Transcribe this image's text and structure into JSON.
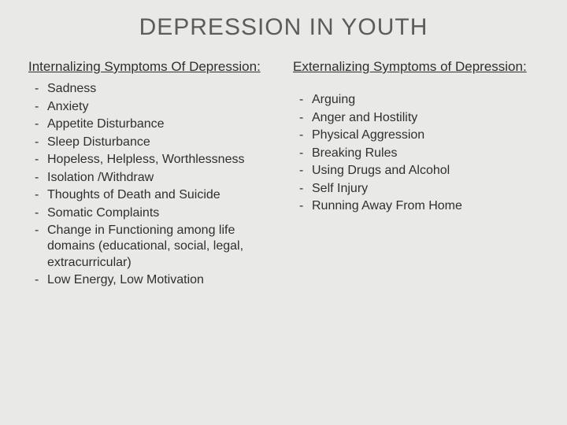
{
  "title": "DEPRESSION IN YOUTH",
  "left": {
    "heading": "Internalizing Symptoms Of Depression:",
    "items": [
      "Sadness",
      "Anxiety",
      "Appetite Disturbance",
      "Sleep Disturbance",
      "Hopeless, Helpless, Worthlessness",
      "Isolation /Withdraw",
      "Thoughts of Death and Suicide",
      "Somatic Complaints",
      "Change in Functioning among life domains (educational, social, legal, extracurricular)",
      "Low Energy, Low Motivation"
    ]
  },
  "right": {
    "heading": "Externalizing Symptoms of Depression:",
    "items": [
      "Arguing",
      "Anger and Hostility",
      "Physical Aggression",
      "Breaking Rules",
      "Using Drugs and Alcohol",
      "Self Injury",
      "Running Away From Home"
    ]
  },
  "colors": {
    "background": "#e9e9e7",
    "title": "#5c5c58",
    "text": "#2f2f2f"
  },
  "typography": {
    "title_fontsize": 30,
    "heading_fontsize": 17,
    "body_fontsize": 16,
    "font_family": "Arial"
  }
}
